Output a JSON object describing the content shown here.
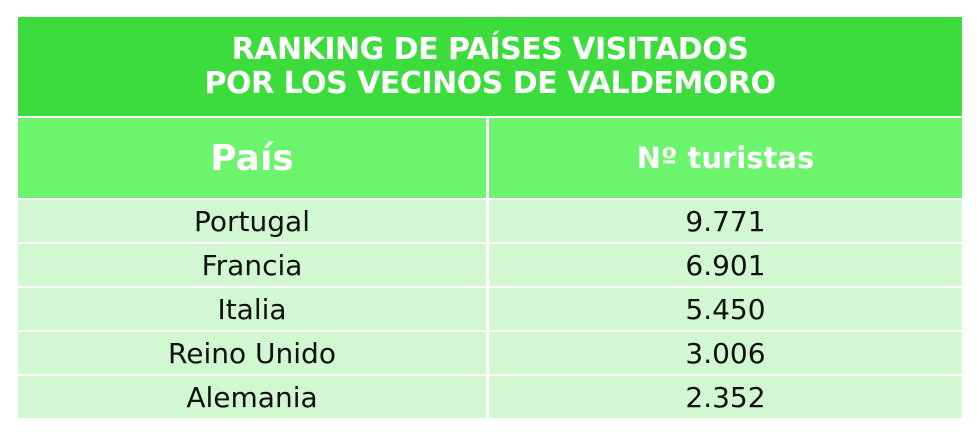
{
  "header": {
    "title_lines": [
      "RANKING DE PAÍSES VISITADOS",
      "POR LOS VECINOS DE VALDEMORO"
    ]
  },
  "table": {
    "columns": [
      "País",
      "Nº turistas"
    ],
    "rows": [
      [
        "Portugal",
        "9.771"
      ],
      [
        "Francia",
        "6.901"
      ],
      [
        "Italia",
        "5.450"
      ],
      [
        "Reino Unido",
        "3.006"
      ],
      [
        "Alemania",
        "2.352"
      ]
    ]
  }
}
